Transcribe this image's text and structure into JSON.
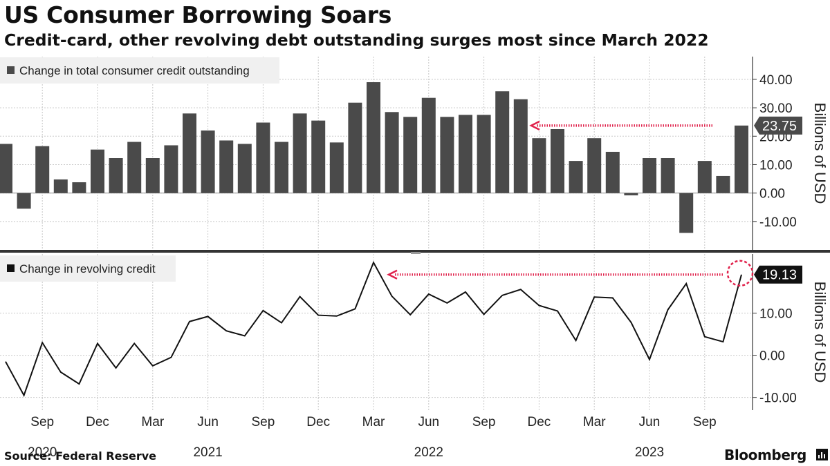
{
  "header": {
    "title": "US Consumer Borrowing Soars",
    "subtitle": "Credit-card, other revolving debt outstanding surges most since March 2022"
  },
  "footer": {
    "source": "Source: Federal Reserve",
    "brand": "Bloomberg"
  },
  "colors": {
    "bar": "#4a4a4a",
    "line": "#111111",
    "accent": "#e0214b",
    "grid": "#c8c8c8",
    "legend_bg": "#f0f0f0"
  },
  "chart_data": [
    {
      "type": "bar",
      "legend": "Change in total consumer credit outstanding",
      "ylabel": "Billions of USD",
      "ylim": [
        -20,
        48
      ],
      "yticks": [
        -10,
        0,
        10,
        20,
        30,
        40
      ],
      "ytick_labels": [
        "-10.00",
        "0.00",
        "10.00",
        "20.00",
        "30.00",
        "40.00"
      ],
      "grid": true,
      "months": [
        "2020-07",
        "2020-08",
        "2020-09",
        "2020-10",
        "2020-11",
        "2020-12",
        "2021-01",
        "2021-02",
        "2021-03",
        "2021-04",
        "2021-05",
        "2021-06",
        "2021-07",
        "2021-08",
        "2021-09",
        "2021-10",
        "2021-11",
        "2021-12",
        "2022-01",
        "2022-02",
        "2022-03",
        "2022-04",
        "2022-05",
        "2022-06",
        "2022-07",
        "2022-08",
        "2022-09",
        "2022-10",
        "2022-11",
        "2022-12",
        "2023-01",
        "2023-02",
        "2023-03",
        "2023-04",
        "2023-05",
        "2023-06",
        "2023-07",
        "2023-08",
        "2023-09",
        "2023-10",
        "2023-11"
      ],
      "values": [
        17.3,
        -5.5,
        16.5,
        4.8,
        3.8,
        15.3,
        12.3,
        18.0,
        12.3,
        16.8,
        28.0,
        22.0,
        18.5,
        17.3,
        24.8,
        18.0,
        28.0,
        25.5,
        17.8,
        31.8,
        39.0,
        28.5,
        26.8,
        33.5,
        26.8,
        27.5,
        27.5,
        35.8,
        33.0,
        19.3,
        22.5,
        11.3,
        19.3,
        14.5,
        -0.8,
        12.3,
        12.3,
        -14.0,
        11.3,
        6.0,
        23.75
      ],
      "annotation": {
        "value": 23.75,
        "label": "23.75"
      }
    },
    {
      "type": "line",
      "legend": "Change in revolving credit",
      "ylabel": "Billions of USD",
      "ylim": [
        -13,
        24
      ],
      "yticks": [
        -10,
        0,
        10
      ],
      "ytick_labels": [
        "-10.00",
        "0.00",
        "10.00"
      ],
      "grid": true,
      "months": [
        "2020-07",
        "2020-08",
        "2020-09",
        "2020-10",
        "2020-11",
        "2020-12",
        "2021-01",
        "2021-02",
        "2021-03",
        "2021-04",
        "2021-05",
        "2021-06",
        "2021-07",
        "2021-08",
        "2021-09",
        "2021-10",
        "2021-11",
        "2021-12",
        "2022-01",
        "2022-02",
        "2022-03",
        "2022-04",
        "2022-05",
        "2022-06",
        "2022-07",
        "2022-08",
        "2022-09",
        "2022-10",
        "2022-11",
        "2022-12",
        "2023-01",
        "2023-02",
        "2023-03",
        "2023-04",
        "2023-05",
        "2023-06",
        "2023-07",
        "2023-08",
        "2023-09",
        "2023-10",
        "2023-11"
      ],
      "values": [
        -1.5,
        -9.5,
        3.0,
        -4.0,
        -6.8,
        2.8,
        -3.0,
        2.8,
        -2.5,
        -0.5,
        8.0,
        9.2,
        5.8,
        4.6,
        10.6,
        7.7,
        13.9,
        9.5,
        9.3,
        11.0,
        22.0,
        14.0,
        9.6,
        14.5,
        12.4,
        15.0,
        9.7,
        14.2,
        15.6,
        11.8,
        10.5,
        3.5,
        13.8,
        13.6,
        7.8,
        -1.0,
        10.8,
        17.0,
        4.4,
        3.2,
        19.13
      ],
      "annotation": {
        "value": 19.13,
        "label": "19.13"
      }
    }
  ],
  "x_axis": {
    "month_labels": [
      {
        "month": "2020-09",
        "label": "Sep"
      },
      {
        "month": "2020-12",
        "label": "Dec"
      },
      {
        "month": "2021-03",
        "label": "Mar"
      },
      {
        "month": "2021-06",
        "label": "Jun"
      },
      {
        "month": "2021-09",
        "label": "Sep"
      },
      {
        "month": "2021-12",
        "label": "Dec"
      },
      {
        "month": "2022-03",
        "label": "Mar"
      },
      {
        "month": "2022-06",
        "label": "Jun"
      },
      {
        "month": "2022-09",
        "label": "Sep"
      },
      {
        "month": "2022-12",
        "label": "Dec"
      },
      {
        "month": "2023-03",
        "label": "Mar"
      },
      {
        "month": "2023-06",
        "label": "Jun"
      },
      {
        "month": "2023-09",
        "label": "Sep"
      }
    ],
    "year_labels": [
      {
        "month": "2020-09",
        "label": "2020"
      },
      {
        "month": "2021-06",
        "label": "2021"
      },
      {
        "month": "2022-06",
        "label": "2022"
      },
      {
        "month": "2023-06",
        "label": "2023"
      }
    ]
  }
}
